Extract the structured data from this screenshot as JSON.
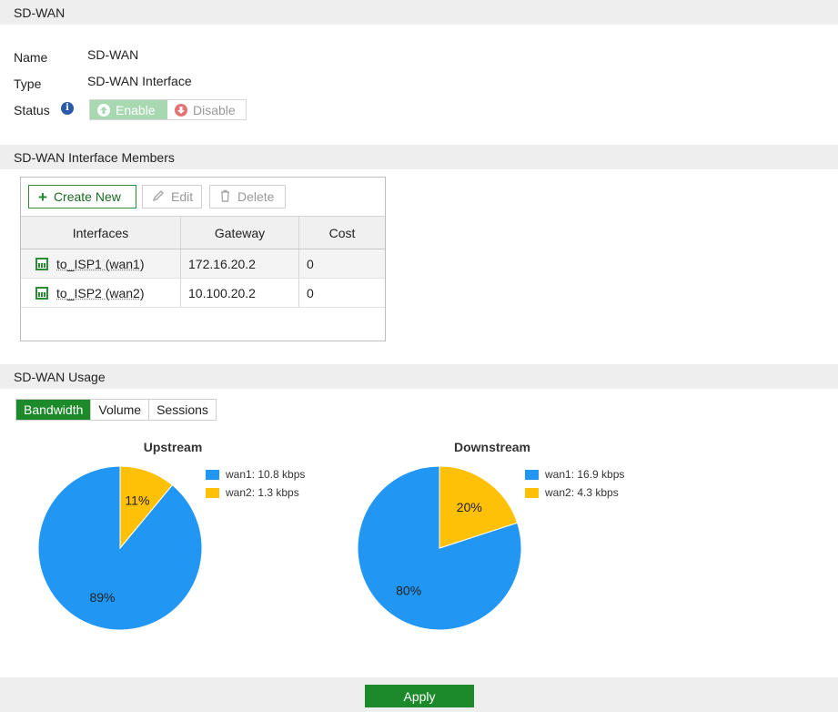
{
  "sections": {
    "sdwan": "SD-WAN",
    "members": "SD-WAN Interface Members",
    "usage": "SD-WAN Usage"
  },
  "fields": {
    "name_label": "Name",
    "name_value": "SD-WAN",
    "type_label": "Type",
    "type_value": "SD-WAN Interface",
    "status_label": "Status",
    "enable_label": "Enable",
    "disable_label": "Disable",
    "status_selected": "Enable"
  },
  "toolbar": {
    "create": "Create New",
    "edit": "Edit",
    "delete": "Delete"
  },
  "table": {
    "headers": [
      "Interfaces",
      "Gateway",
      "Cost"
    ],
    "rows": [
      {
        "interface": "to_ISP1 (wan1)",
        "gateway": "172.16.20.2",
        "cost": "0"
      },
      {
        "interface": "to_ISP2 (wan2)",
        "gateway": "10.100.20.2",
        "cost": "0"
      }
    ]
  },
  "tabs": {
    "items": [
      "Bandwidth",
      "Volume",
      "Sessions"
    ],
    "active": "Bandwidth"
  },
  "colors": {
    "wan1": "#2196f3",
    "wan2": "#ffc107",
    "accent": "#1c8a2a"
  },
  "chart_data": [
    {
      "type": "pie",
      "title": "Upstream",
      "slices": [
        {
          "label": "89%",
          "value": 89
        },
        {
          "label": "11%",
          "value": 11
        }
      ],
      "legend": [
        "wan1: 10.8 kbps",
        "wan2: 1.3 kbps"
      ],
      "legend_position": "top-right"
    },
    {
      "type": "pie",
      "title": "Downstream",
      "slices": [
        {
          "label": "80%",
          "value": 80
        },
        {
          "label": "20%",
          "value": 20
        }
      ],
      "legend": [
        "wan1: 16.9 kbps",
        "wan2: 4.3 kbps"
      ],
      "legend_position": "top-right"
    }
  ],
  "footer": {
    "apply": "Apply"
  }
}
